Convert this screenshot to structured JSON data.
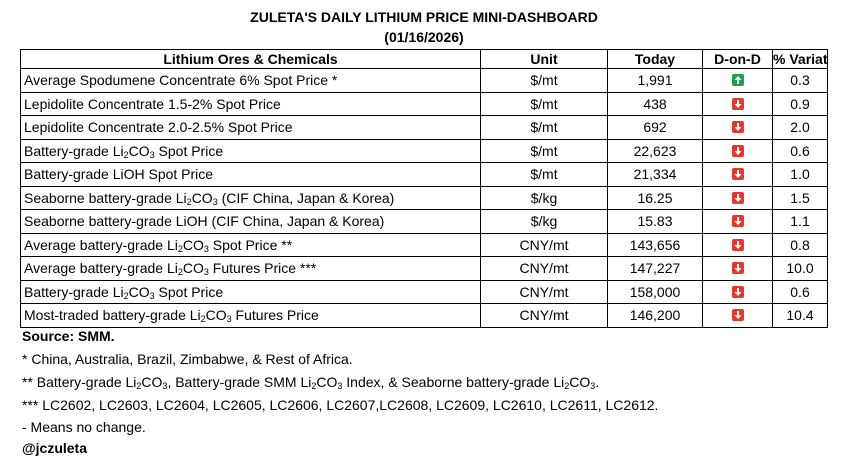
{
  "title": "ZULETA'S DAILY LITHIUM PRICE MINI-DASHBOARD",
  "date": "(01/16/2026)",
  "columns": [
    "Lithium Ores & Chemicals",
    "Unit",
    "Today",
    "D-on-D",
    "% Variation"
  ],
  "rows": [
    {
      "name": "Average Spodumene Concentrate 6% Spot Price *",
      "unit": "$/mt",
      "today": "1,991",
      "direction": "up",
      "icon": "green-up-arrow-icon",
      "variation": "0.3"
    },
    {
      "name": "Lepidolite Concentrate 1.5-2% Spot Price",
      "unit": "$/mt",
      "today": "438",
      "direction": "down",
      "icon": "red-down-arrow-icon",
      "variation": "0.9"
    },
    {
      "name": "Lepidolite Concentrate 2.0-2.5% Spot Price",
      "unit": "$/mt",
      "today": "692",
      "direction": "down",
      "icon": "red-down-arrow-icon",
      "variation": "2.0"
    },
    {
      "name_parts": [
        "Battery-grade Li",
        "2",
        "CO",
        "3",
        " Spot Price"
      ],
      "unit": "$/mt",
      "today": "22,623",
      "direction": "down",
      "icon": "red-down-arrow-icon",
      "variation": "0.6"
    },
    {
      "name": "Battery-grade LiOH Spot Price",
      "unit": "$/mt",
      "today": "21,334",
      "direction": "down",
      "icon": "red-down-arrow-icon",
      "variation": "1.0"
    },
    {
      "name_parts": [
        "Seaborne battery-grade Li",
        "2",
        "CO",
        "3",
        " (CIF China, Japan & Korea)"
      ],
      "unit": "$/kg",
      "today": "16.25",
      "direction": "down",
      "icon": "red-down-arrow-icon",
      "variation": "1.5"
    },
    {
      "name": "Seaborne battery-grade LiOH (CIF China, Japan & Korea)",
      "unit": "$/kg",
      "today": "15.83",
      "direction": "down",
      "icon": "red-down-arrow-icon",
      "variation": "1.1"
    },
    {
      "name_parts": [
        "Average battery-grade Li",
        "2",
        "CO",
        "3",
        " Spot Price **"
      ],
      "unit": "CNY/mt",
      "today": "143,656",
      "direction": "down",
      "icon": "red-down-arrow-icon",
      "variation": "0.8"
    },
    {
      "name_parts": [
        "Average battery-grade Li",
        "2",
        "CO",
        "3",
        " Futures Price ***"
      ],
      "unit": "CNY/mt",
      "today": "147,227",
      "direction": "down",
      "icon": "red-down-arrow-icon",
      "variation": "10.0"
    },
    {
      "name_parts": [
        "Battery-grade Li",
        "2",
        "CO",
        "3",
        " Spot Price"
      ],
      "unit": "CNY/mt",
      "today": "158,000",
      "direction": "down",
      "icon": "red-down-arrow-icon",
      "variation": "0.6"
    },
    {
      "name_parts": [
        "Most-traded battery-grade Li",
        "2",
        "CO",
        "3",
        " Futures Price"
      ],
      "unit": "CNY/mt",
      "today": "146,200",
      "direction": "down",
      "icon": "red-down-arrow-icon",
      "variation": "10.4"
    }
  ],
  "source": "Source: SMM.",
  "note1": "* China, Australia, Brazil, Zimbabwe, & Rest of Africa.",
  "note2_parts": [
    "** Battery-grade Li",
    "2",
    "CO",
    "3",
    ", Battery-grade SMM Li",
    "2",
    "CO",
    "3",
    " Index, & Seaborne battery-grade Li",
    "2",
    "CO",
    "3",
    "."
  ],
  "note3": "*** LC2602, LC2603, LC2604, LC2605, LC2606, LC2607,LC2608, LC2609, LC2610, LC2611, LC2612.",
  "note4": "- Means no change.",
  "handle": "@jczuleta",
  "colors": {
    "up": "#1aa34a",
    "down": "#e8362a"
  }
}
